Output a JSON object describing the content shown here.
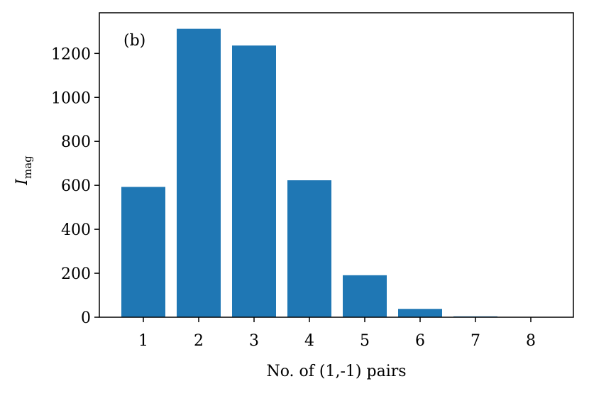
{
  "chart_data": {
    "type": "bar",
    "panel_label": "(b)",
    "categories": [
      "1",
      "2",
      "3",
      "4",
      "5",
      "6",
      "7",
      "8"
    ],
    "values": [
      593,
      1312,
      1236,
      623,
      191,
      38,
      4,
      1
    ],
    "xlabel": "No. of (1,-1) pairs",
    "ylabel_main": "I",
    "ylabel_sub": "mag",
    "ylim": [
      0,
      1385
    ],
    "yticks": [
      "0",
      "200",
      "400",
      "600",
      "800",
      "1000",
      "1200"
    ],
    "bar_color": "#1f77b4",
    "grid": false
  }
}
